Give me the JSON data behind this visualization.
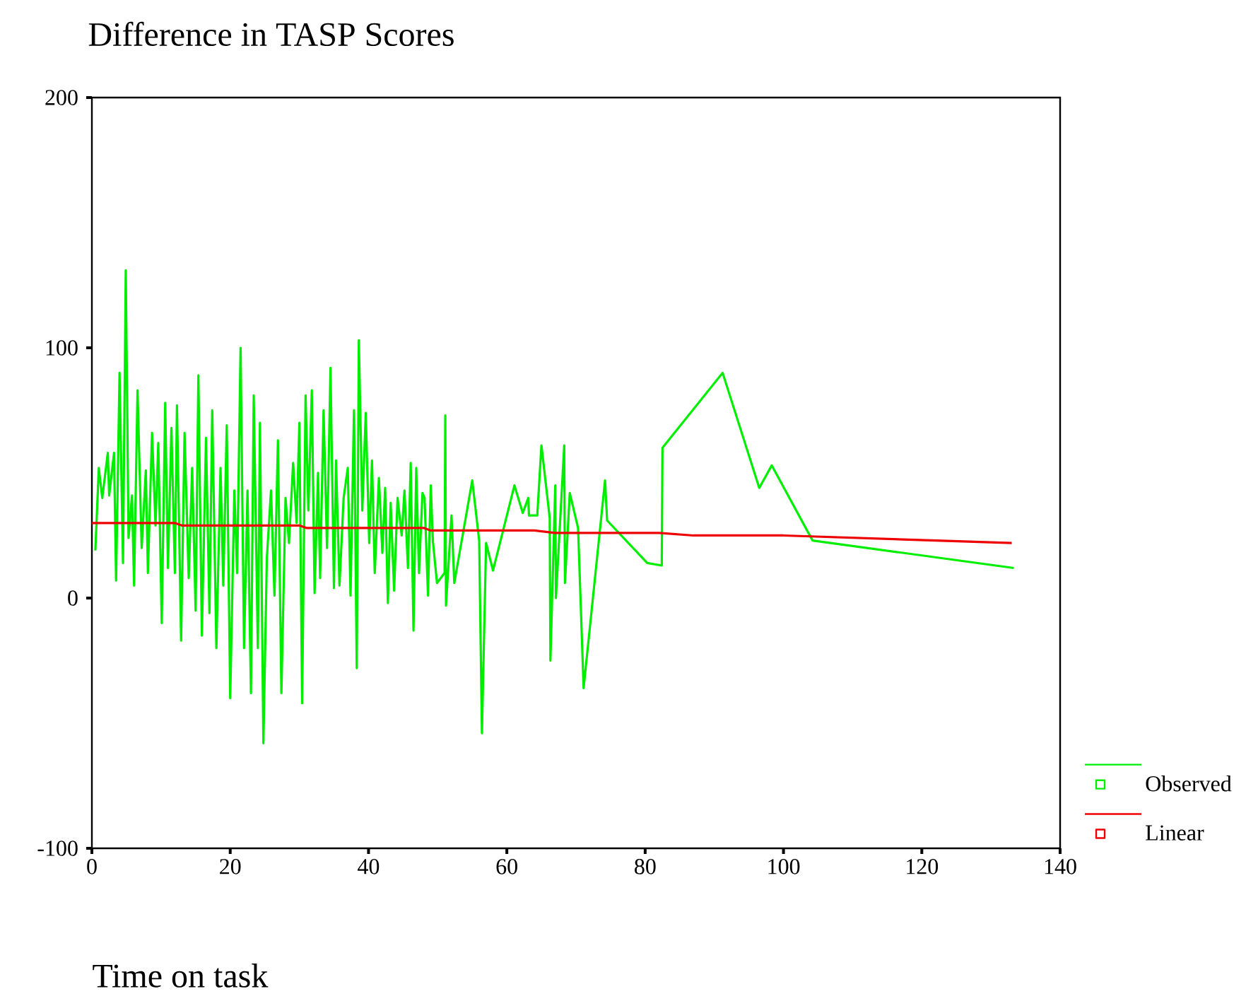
{
  "chart_data": {
    "type": "line",
    "title": "Difference in  TASP Scores",
    "xlabel": "Time on task",
    "xlim": [
      0,
      140
    ],
    "ylim": [
      -100,
      200
    ],
    "xticks": [
      0,
      20,
      40,
      60,
      80,
      100,
      120,
      140
    ],
    "yticks": [
      -100,
      0,
      100,
      200
    ],
    "legend": "right",
    "grid": false,
    "series": [
      {
        "name": "Observed",
        "color": "#00ee00",
        "x": [
          0.5,
          1,
          1.5,
          2.3,
          2.5,
          3.2,
          3.5,
          4,
          4.5,
          4.9,
          5.3,
          5.8,
          6.1,
          6.6,
          7.2,
          7.8,
          8.1,
          8.7,
          9.2,
          9.6,
          10.1,
          10.6,
          11.0,
          11.5,
          12,
          12.3,
          12.9,
          13.4,
          14,
          14.5,
          15,
          15.4,
          15.9,
          16.5,
          17,
          17.4,
          18,
          18.6,
          19,
          19.5,
          20,
          20.6,
          21,
          21.5,
          22,
          22.5,
          23,
          23.4,
          24,
          24.3,
          24.8,
          25.3,
          25.9,
          26.4,
          26.9,
          27.4,
          28,
          28.5,
          29.1,
          29.6,
          30,
          30.4,
          30.9,
          31.3,
          31.8,
          32.2,
          32.7,
          33,
          33.5,
          34,
          34.5,
          35,
          35.3,
          35.8,
          36.4,
          37,
          37.4,
          37.9,
          38.3,
          38.6,
          39.1,
          39.6,
          40.1,
          40.5,
          40.9,
          41.5,
          42,
          42.4,
          42.8,
          43.2,
          43.7,
          44.2,
          44.8,
          45.2,
          45.7,
          46.1,
          46.5,
          46.9,
          47.3,
          47.8,
          48.1,
          48.6,
          49,
          49.3,
          49.9,
          51,
          51.1,
          51.2,
          52,
          52.4,
          55,
          56,
          56.4,
          57,
          58,
          61.1,
          62.3,
          63.1,
          63.2,
          64.4,
          65,
          66.2,
          66.3,
          67,
          67.1,
          68.3,
          68.4,
          69.1,
          70.3,
          71.1,
          74.2,
          74.5,
          80.3,
          82.4,
          82.5,
          91.2,
          96.5,
          98.3,
          104.2,
          133.3
        ],
        "values": [
          19,
          52,
          40,
          58,
          41,
          58,
          7,
          90,
          14,
          131,
          24,
          41,
          5,
          83,
          20,
          51,
          10,
          66,
          29,
          62,
          -10,
          78,
          12,
          68,
          10,
          77,
          -17,
          66,
          8,
          52,
          -5,
          89,
          -15,
          64,
          -6,
          75,
          -20,
          52,
          5,
          69,
          -40,
          43,
          10,
          100,
          -20,
          43,
          -38,
          81,
          -20,
          70,
          -58,
          16,
          43,
          1,
          63,
          -38,
          40,
          22,
          54,
          30,
          70,
          -42,
          81,
          35,
          83,
          2,
          50,
          8,
          75,
          20,
          92,
          4,
          55,
          5,
          40,
          52,
          1,
          75,
          -28,
          103,
          35,
          74,
          22,
          55,
          10,
          48,
          18,
          44,
          -2,
          38,
          3,
          40,
          25,
          43,
          12,
          54,
          -13,
          52,
          10,
          42,
          40,
          1,
          45,
          23,
          6,
          10,
          73,
          -3,
          33,
          6,
          47,
          23,
          -54,
          22,
          11,
          45,
          34,
          40,
          33,
          33,
          61,
          32,
          -25,
          45,
          0,
          61,
          6,
          42,
          28,
          -36,
          47,
          31,
          14,
          13,
          60,
          90,
          44,
          53,
          23,
          12
        ]
      },
      {
        "name": "Linear",
        "color": "#ee0000",
        "x": [
          0,
          12,
          13,
          30,
          31,
          48,
          49,
          63,
          64,
          67,
          82,
          87,
          100,
          133
        ],
        "values": [
          30,
          30,
          29,
          29,
          28,
          28,
          27,
          27,
          27,
          26,
          26,
          25,
          25,
          22
        ]
      }
    ]
  }
}
